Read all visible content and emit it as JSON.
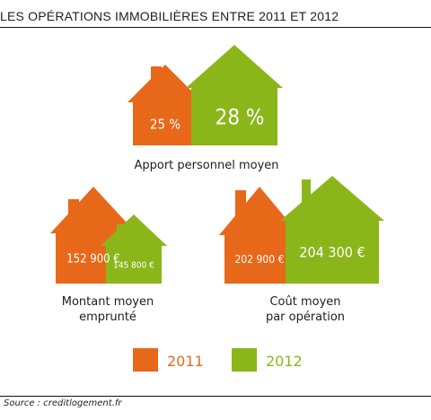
{
  "title": "LES OPÉRATIONS IMMOBILIÈRES ENTRE 2011 ET 2012",
  "source": "Source : creditlogement.fr",
  "colors": {
    "y2011": "#e8681a",
    "y2012": "#8ab619"
  },
  "legend": [
    {
      "label": "2011",
      "color": "#e8681a"
    },
    {
      "label": "2012",
      "color": "#8ab619"
    }
  ],
  "chart_data": [
    {
      "type": "bar",
      "title": "Apport personnel moyen",
      "categories": [
        "2011",
        "2012"
      ],
      "values": [
        25,
        28
      ],
      "unit": "%",
      "value_labels": [
        "25 %",
        "28 %"
      ]
    },
    {
      "type": "bar",
      "title": "Montant moyen\nemprunté",
      "categories": [
        "2011",
        "2012"
      ],
      "values": [
        152900,
        145800
      ],
      "unit": "€",
      "value_labels": [
        "152 900 €",
        "145 800 €"
      ]
    },
    {
      "type": "bar",
      "title": "Coût moyen\npar opération",
      "categories": [
        "2011",
        "2012"
      ],
      "values": [
        202900,
        204300
      ],
      "unit": "€",
      "value_labels": [
        "202 900 €",
        "204 300 €"
      ]
    }
  ]
}
